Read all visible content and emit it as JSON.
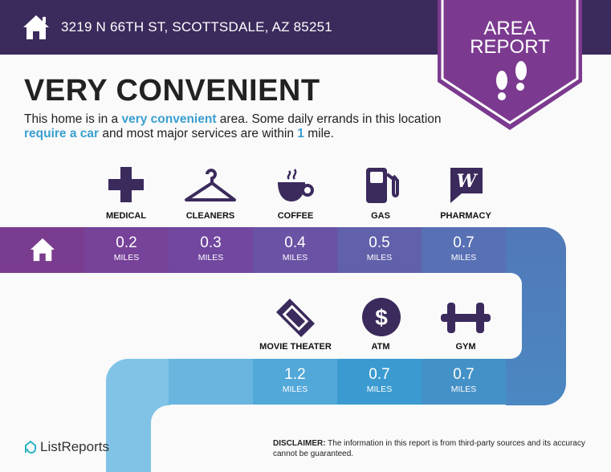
{
  "header": {
    "address": "3219 N 66TH ST, SCOTTSDALE, AZ 85251",
    "icon": "home-icon"
  },
  "badge": {
    "line1": "AREA",
    "line2": "REPORT",
    "icon": "footprints-icon"
  },
  "title": "VERY CONVENIENT",
  "description": {
    "p1": "This home is in a ",
    "h1": "very convenient",
    "p2": " area. Some daily errands in this location ",
    "h2": "require a car",
    "p3": " and most major services are within ",
    "h3": "1",
    "p4": " mile."
  },
  "unit": "MILES",
  "row1": [
    {
      "label": "MEDICAL",
      "value": "0.2",
      "icon": "medical-cross-icon"
    },
    {
      "label": "CLEANERS",
      "value": "0.3",
      "icon": "hanger-icon"
    },
    {
      "label": "COFFEE",
      "value": "0.4",
      "icon": "coffee-cup-icon"
    },
    {
      "label": "GAS",
      "value": "0.5",
      "icon": "gas-pump-icon"
    },
    {
      "label": "PHARMACY",
      "value": "0.7",
      "icon": "pharmacy-icon"
    }
  ],
  "row2": [
    {
      "label": "MOVIE THEATER",
      "value": "1.2",
      "icon": "ticket-icon"
    },
    {
      "label": "ATM",
      "value": "0.7",
      "icon": "dollar-icon"
    },
    {
      "label": "GYM",
      "value": "0.7",
      "icon": "dumbbell-icon"
    }
  ],
  "footer": {
    "logo": "ListReports",
    "disclaimer_label": "DISCLAIMER:",
    "disclaimer": " The information in this report is from third-party sources and its accuracy cannot be guaranteed."
  },
  "colors": {
    "header": "#3b2a5c",
    "accent": "#3a9fd0",
    "badge": "#7b3a8f"
  }
}
